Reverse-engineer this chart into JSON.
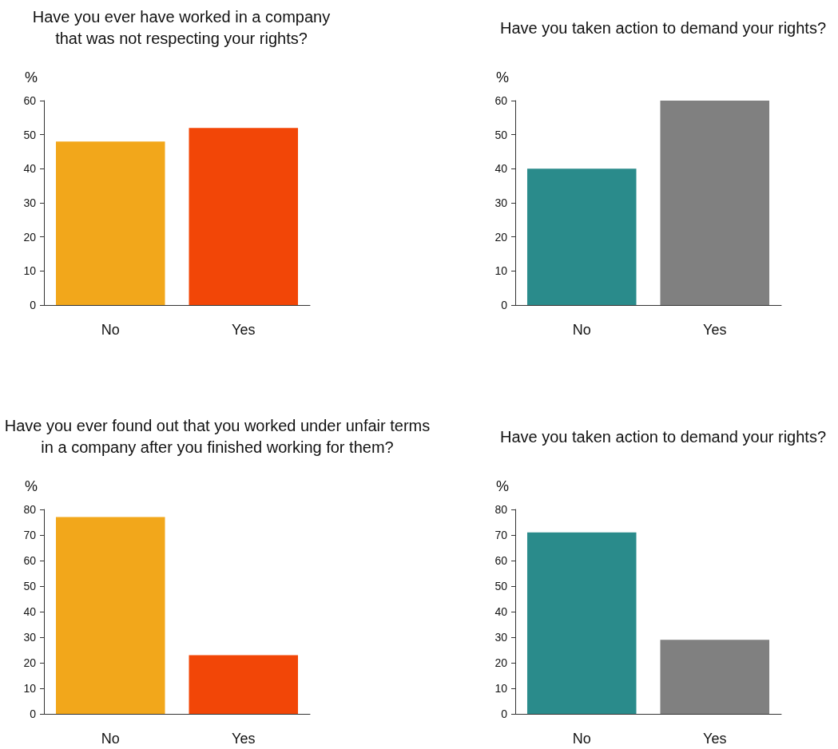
{
  "chart_data": [
    {
      "type": "bar",
      "title": "Have you ever have worked in a company that was not respecting your rights?",
      "ylabel": "%",
      "categories": [
        "No",
        "Yes"
      ],
      "values": [
        48,
        52
      ],
      "colors": [
        "#f2a71b",
        "#f24607"
      ],
      "ylim": [
        0,
        60
      ],
      "yticks": [
        0,
        10,
        20,
        30,
        40,
        50,
        60
      ]
    },
    {
      "type": "bar",
      "title": "Have you taken action to demand your rights?",
      "ylabel": "%",
      "categories": [
        "No",
        "Yes"
      ],
      "values": [
        40,
        60
      ],
      "colors": [
        "#2a8b8b",
        "#808080"
      ],
      "ylim": [
        0,
        60
      ],
      "yticks": [
        0,
        10,
        20,
        30,
        40,
        50,
        60
      ]
    },
    {
      "type": "bar",
      "title": "Have you ever found out that you worked under unfair terms in a company after you finished working for them?",
      "ylabel": "%",
      "categories": [
        "No",
        "Yes"
      ],
      "values": [
        77,
        23
      ],
      "colors": [
        "#f2a71b",
        "#f24607"
      ],
      "ylim": [
        0,
        80
      ],
      "yticks": [
        0,
        10,
        20,
        30,
        40,
        50,
        60,
        70,
        80
      ]
    },
    {
      "type": "bar",
      "title": "Have you taken action to demand your rights?",
      "ylabel": "%",
      "categories": [
        "No",
        "Yes"
      ],
      "values": [
        71,
        29
      ],
      "colors": [
        "#2a8b8b",
        "#808080"
      ],
      "ylim": [
        0,
        80
      ],
      "yticks": [
        0,
        10,
        20,
        30,
        40,
        50,
        60,
        70,
        80
      ]
    }
  ]
}
